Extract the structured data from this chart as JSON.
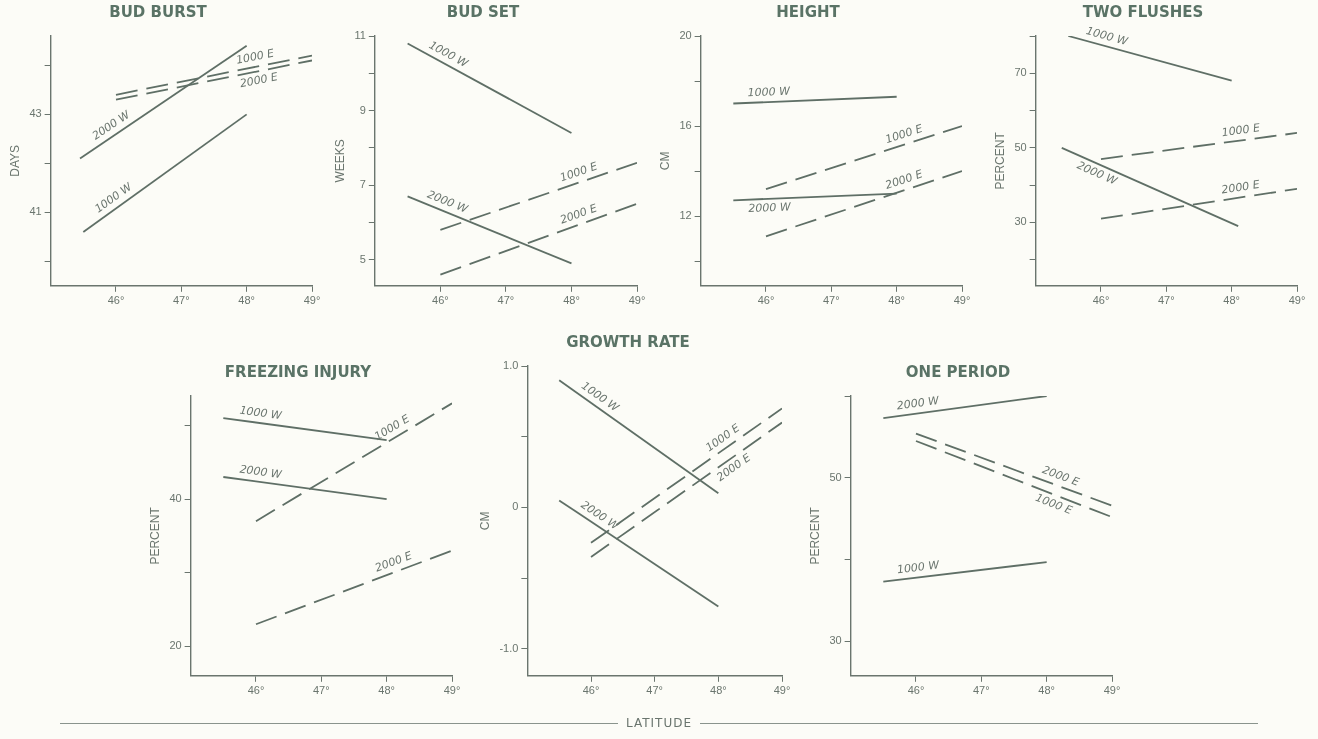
{
  "chart_data": [
    {
      "type": "line",
      "title": "BUD BURST",
      "ylabel": "DAYS",
      "xlim": [
        45,
        49
      ],
      "xticks": [
        {
          "value": 46,
          "label": "46°"
        },
        {
          "value": 47,
          "label": "47°"
        },
        {
          "value": 48,
          "label": "48°"
        },
        {
          "value": 49,
          "label": "49°"
        }
      ],
      "ylim": [
        39.5,
        44.6
      ],
      "yticks": [
        {
          "value": 40,
          "label": null
        },
        41,
        {
          "value": 42,
          "label": null
        },
        43,
        {
          "value": 44,
          "label": null
        }
      ],
      "series": [
        {
          "name": "1000 W",
          "color": "#5f6f66",
          "x": [
            45.5,
            48
          ],
          "values": [
            40.6,
            43.0
          ]
        },
        {
          "name": "2000 W",
          "color": "#5f6f66",
          "x": [
            45.45,
            48
          ],
          "values": [
            42.1,
            44.4
          ]
        },
        {
          "name": "1000 E",
          "color": "#5f6f66",
          "line_style": "dashed",
          "x": [
            46,
            49
          ],
          "values": [
            43.4,
            44.2
          ]
        },
        {
          "name": "2000 E",
          "color": "#5f6f66",
          "line_style": "dashed",
          "x": [
            46,
            49
          ],
          "values": [
            43.3,
            44.1
          ]
        }
      ]
    },
    {
      "type": "line",
      "title": "BUD SET",
      "ylabel": "WEEKS",
      "xlim": [
        45,
        49
      ],
      "xticks": [
        {
          "value": 46,
          "label": "46°"
        },
        {
          "value": 47,
          "label": "47°"
        },
        {
          "value": 48,
          "label": "48°"
        },
        {
          "value": 49,
          "label": "49°"
        }
      ],
      "ylim": [
        4.3,
        11
      ],
      "yticks": [
        5,
        {
          "value": 6,
          "label": null
        },
        7,
        {
          "value": 8,
          "label": null
        },
        9,
        {
          "value": 10,
          "label": null
        },
        11
      ],
      "series": [
        {
          "name": "1000 W",
          "color": "#5f6f66",
          "x": [
            45.5,
            48
          ],
          "values": [
            10.8,
            8.4
          ]
        },
        {
          "name": "2000 W",
          "color": "#5f6f66",
          "x": [
            45.5,
            48
          ],
          "values": [
            6.7,
            4.9
          ]
        },
        {
          "name": "1000 E",
          "color": "#5f6f66",
          "line_style": "dashed",
          "x": [
            46,
            49
          ],
          "values": [
            5.8,
            7.6
          ]
        },
        {
          "name": "2000 E",
          "color": "#5f6f66",
          "line_style": "dashed",
          "x": [
            46,
            49
          ],
          "values": [
            4.6,
            6.5
          ]
        }
      ]
    },
    {
      "type": "line",
      "title": "HEIGHT",
      "ylabel": "CM",
      "xlim": [
        45,
        49
      ],
      "xticks": [
        {
          "value": 46,
          "label": "46°"
        },
        {
          "value": 47,
          "label": "47°"
        },
        {
          "value": 48,
          "label": "48°"
        },
        {
          "value": 49,
          "label": "49°"
        }
      ],
      "ylim": [
        8.9,
        20
      ],
      "yticks": [
        {
          "value": 10,
          "label": null
        },
        12,
        {
          "value": 14,
          "label": null
        },
        16,
        {
          "value": 18,
          "label": null
        },
        20
      ],
      "series": [
        {
          "name": "1000 W",
          "color": "#5f6f66",
          "x": [
            45.5,
            48
          ],
          "values": [
            17.0,
            17.3
          ]
        },
        {
          "name": "2000 W",
          "color": "#5f6f66",
          "x": [
            45.5,
            48
          ],
          "values": [
            12.7,
            13.0
          ]
        },
        {
          "name": "1000 E",
          "color": "#5f6f66",
          "line_style": "dashed",
          "x": [
            46,
            49
          ],
          "values": [
            13.2,
            16.0
          ]
        },
        {
          "name": "2000 E",
          "color": "#5f6f66",
          "line_style": "dashed",
          "x": [
            46,
            49
          ],
          "values": [
            11.1,
            14.0
          ]
        }
      ]
    },
    {
      "type": "line",
      "title": "TWO FLUSHES",
      "ylabel": "PERCENT",
      "xlim": [
        45,
        49
      ],
      "xticks": [
        {
          "value": 46,
          "label": "46°"
        },
        {
          "value": 47,
          "label": "47°"
        },
        {
          "value": 48,
          "label": "48°"
        },
        {
          "value": 49,
          "label": "49°"
        }
      ],
      "ylim": [
        13,
        80
      ],
      "yticks": [
        {
          "value": 20,
          "label": null
        },
        30,
        {
          "value": 40,
          "label": null
        },
        50,
        {
          "value": 60,
          "label": null
        },
        70,
        {
          "value": 80,
          "label": null
        }
      ],
      "series": [
        {
          "name": "1000 W",
          "color": "#5f6f66",
          "x": [
            45.5,
            48
          ],
          "values": [
            80,
            68
          ]
        },
        {
          "name": "2000 W",
          "color": "#5f6f66",
          "x": [
            45.4,
            48.1
          ],
          "values": [
            50,
            29
          ]
        },
        {
          "name": "1000 E",
          "color": "#5f6f66",
          "line_style": "dashed",
          "x": [
            46,
            49
          ],
          "values": [
            47,
            54
          ]
        },
        {
          "name": "2000 E",
          "color": "#5f6f66",
          "line_style": "dashed",
          "x": [
            46,
            49
          ],
          "values": [
            31,
            39
          ]
        }
      ]
    },
    {
      "type": "line",
      "title": "FREEZING INJURY",
      "ylabel": "PERCENT",
      "xlim": [
        45,
        49
      ],
      "xticks": [
        {
          "value": 46,
          "label": "46°"
        },
        {
          "value": 47,
          "label": "47°"
        },
        {
          "value": 48,
          "label": "48°"
        },
        {
          "value": 49,
          "label": "49°"
        }
      ],
      "ylim": [
        16,
        54
      ],
      "yticks": [
        20,
        {
          "value": 30,
          "label": null
        },
        40,
        {
          "value": 50,
          "label": null
        }
      ],
      "series": [
        {
          "name": "1000 W",
          "color": "#5f6f66",
          "x": [
            45.5,
            48
          ],
          "values": [
            51,
            48
          ]
        },
        {
          "name": "2000 W",
          "color": "#5f6f66",
          "x": [
            45.5,
            48
          ],
          "values": [
            43,
            40
          ]
        },
        {
          "name": "1000 E",
          "color": "#5f6f66",
          "line_style": "dashed",
          "x": [
            46,
            49
          ],
          "values": [
            37,
            53
          ]
        },
        {
          "name": "2000 E",
          "color": "#5f6f66",
          "line_style": "dashed",
          "x": [
            46,
            49
          ],
          "values": [
            23,
            33
          ]
        }
      ]
    },
    {
      "type": "line",
      "title": "GROWTH RATE",
      "ylabel": "CM",
      "xlim": [
        45,
        49
      ],
      "xticks": [
        {
          "value": 46,
          "label": "46°"
        },
        {
          "value": 47,
          "label": "47°"
        },
        {
          "value": 48,
          "label": "48°"
        },
        {
          "value": 49,
          "label": "49°"
        }
      ],
      "ylim": [
        -1.19,
        1.0
      ],
      "yticks": [
        {
          "value": -1,
          "label": "-1.0"
        },
        {
          "value": -0.5,
          "label": null
        },
        0,
        {
          "value": 0.5,
          "label": null
        },
        {
          "value": 1,
          "label": "1.0"
        }
      ],
      "annotations": [
        "LATITUDE"
      ],
      "series": [
        {
          "name": "1000 W",
          "color": "#5f6f66",
          "x": [
            45.5,
            48
          ],
          "values": [
            0.9,
            0.1
          ]
        },
        {
          "name": "2000 W",
          "color": "#5f6f66",
          "x": [
            45.5,
            48
          ],
          "values": [
            0.05,
            -0.7
          ]
        },
        {
          "name": "1000 E",
          "color": "#5f6f66",
          "line_style": "dashed",
          "x": [
            46,
            49
          ],
          "values": [
            -0.25,
            0.7
          ]
        },
        {
          "name": "2000 E",
          "color": "#5f6f66",
          "line_style": "dashed",
          "x": [
            46,
            49
          ],
          "values": [
            -0.35,
            0.6
          ]
        }
      ]
    },
    {
      "type": "line",
      "title": "ONE PERIOD",
      "ylabel": "PERCENT",
      "xlim": [
        45,
        49
      ],
      "xticks": [
        {
          "value": 46,
          "label": "46°"
        },
        {
          "value": 47,
          "label": "47°"
        },
        {
          "value": 48,
          "label": "48°"
        },
        {
          "value": 49,
          "label": "49°"
        }
      ],
      "ylim": [
        25.8,
        60
      ],
      "yticks": [
        30,
        {
          "value": 40,
          "label": null
        },
        50,
        {
          "value": 60,
          "label": null
        }
      ],
      "series": [
        {
          "name": "2000 W",
          "color": "#5f6f66",
          "x": [
            45.5,
            48
          ],
          "values": [
            57.3,
            60
          ]
        },
        {
          "name": "1000 W",
          "color": "#5f6f66",
          "x": [
            45.5,
            48
          ],
          "values": [
            37.3,
            39.7
          ]
        },
        {
          "name": "2000 E",
          "color": "#5f6f66",
          "line_style": "dashed",
          "x": [
            46,
            49
          ],
          "values": [
            55.4,
            46.6
          ]
        },
        {
          "name": "1000 E",
          "color": "#5f6f66",
          "line_style": "dashed",
          "x": [
            46,
            49
          ],
          "values": [
            54.5,
            45.2
          ]
        }
      ]
    }
  ]
}
